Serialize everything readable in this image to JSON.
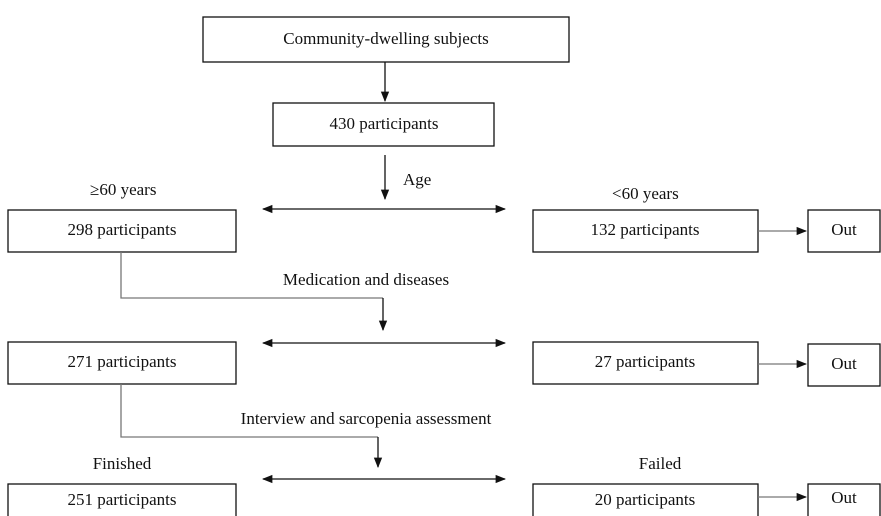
{
  "nodes": [
    {
      "label": "Community-dwelling subjects"
    },
    {
      "label": "430 participants"
    },
    {
      "label": "298 participants"
    },
    {
      "label": "132 participants"
    },
    {
      "label": "Out"
    },
    {
      "label": "271 participants"
    },
    {
      "label": "27 participants"
    },
    {
      "label": "Out"
    },
    {
      "label": "251 participants"
    },
    {
      "label": "20 participants"
    },
    {
      "label": "Out"
    }
  ],
  "labels": {
    "age": "Age",
    "age_60_plus": "≥60 years",
    "age_under_60": "<60 years",
    "medication": "Medication and diseases",
    "interview": "Interview and sarcopenia assessment",
    "finished": "Finished",
    "failed": "Failed"
  }
}
